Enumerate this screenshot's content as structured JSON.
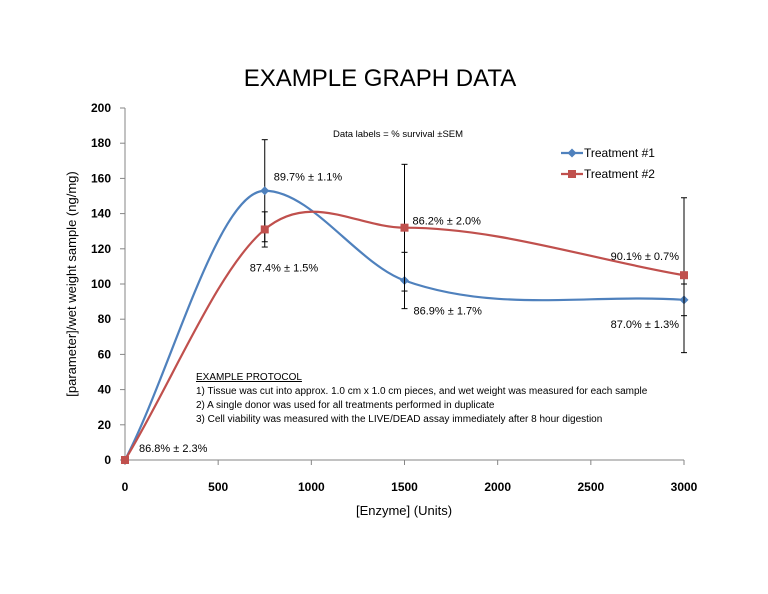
{
  "chart_data": {
    "type": "line",
    "title": "EXAMPLE GRAPH DATA",
    "xlabel": "[Enzyme] (Units)",
    "ylabel": "[parameter]/wet weight sample (ng/mg)",
    "xlim": [
      0,
      3000
    ],
    "ylim": [
      0,
      200
    ],
    "xticks": [
      0,
      500,
      1000,
      1500,
      2000,
      2500,
      3000
    ],
    "yticks": [
      0,
      20,
      40,
      60,
      80,
      100,
      120,
      140,
      160,
      180,
      200
    ],
    "grid": false,
    "legend_position": "top-right",
    "note": "Data labels = % survival ±SEM",
    "series": [
      {
        "name": "Treatment #1",
        "color": "#4F81BD",
        "marker": "diamond",
        "points": [
          {
            "x": 0,
            "y": 0,
            "err": 0
          },
          {
            "x": 750,
            "y": 153,
            "err": 29
          },
          {
            "x": 1500,
            "y": 102,
            "err": 16
          },
          {
            "x": 3000,
            "y": 91,
            "err": 9
          }
        ],
        "labels": [
          "86.8% ± 2.3%",
          "89.7% ± 1.1%",
          "86.9% ± 1.7%",
          "87.0% ± 1.3%"
        ]
      },
      {
        "name": "Treatment #2",
        "color": "#C0504D",
        "marker": "square",
        "points": [
          {
            "x": 0,
            "y": 0,
            "err": 0
          },
          {
            "x": 750,
            "y": 131,
            "err": 10
          },
          {
            "x": 1500,
            "y": 132,
            "err": 36
          },
          {
            "x": 3000,
            "y": 105,
            "err": 44
          }
        ],
        "labels": [
          "",
          "87.4% ± 1.5%",
          "86.2% ± 2.0%",
          "90.1% ± 0.7%"
        ]
      }
    ],
    "annotation": {
      "heading": "EXAMPLE PROTOCOL",
      "lines": [
        "1) Tissue was cut into approx. 1.0 cm x 1.0 cm pieces, and wet weight was measured for each sample",
        "2) A single donor was used for all treatments performed in duplicate",
        "3) Cell viability was measured with the LIVE/DEAD assay immediately after 8 hour digestion"
      ]
    }
  }
}
